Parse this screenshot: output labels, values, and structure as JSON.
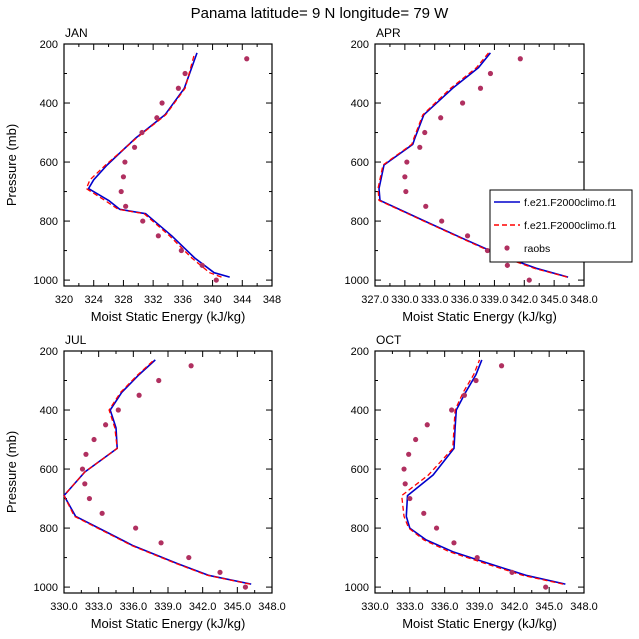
{
  "title": "Panama  latitude= 9 N longitude= 79 W",
  "legend": {
    "placement": "right, between top and bottom rows",
    "entries": [
      {
        "label": "f.e21.F2000climo.f1",
        "style": "solid",
        "color": "#0000cc"
      },
      {
        "label": "f.e21.F2000climo.f1",
        "style": "dashed",
        "color": "#ff0000"
      },
      {
        "label": "raobs",
        "style": "marker",
        "color": "#b03060"
      }
    ]
  },
  "chart_data": [
    {
      "type": "line",
      "panel": "JAN",
      "title": "JAN",
      "xlabel": "Moist Static Energy (kJ/kg)",
      "ylabel": "Pressure (mb)",
      "xlim": [
        320,
        348
      ],
      "ylim": [
        1020,
        200
      ],
      "xticks": [
        "320",
        "324",
        "328",
        "332",
        "336",
        "340",
        "344",
        "348"
      ],
      "yticks": [
        "200",
        "400",
        "600",
        "800",
        "1000"
      ],
      "series": [
        {
          "name": "f.e21.F2000climo.f1",
          "style": "solid",
          "color": "#0000cc",
          "x": [
            342.3,
            340.2,
            337.6,
            334.5,
            331.0,
            327.5,
            326.0,
            323.3,
            324.0,
            325.8,
            329.6,
            333.6,
            336.2,
            337.9
          ],
          "y": [
            990,
            975,
            925,
            850,
            775,
            760,
            730,
            690,
            660,
            610,
            520,
            440,
            350,
            230
          ]
        },
        {
          "name": "f.e21.F2000climo.f1",
          "style": "dashed",
          "color": "#ff0000",
          "x": [
            341.2,
            339.6,
            337.2,
            334.2,
            330.8,
            327.3,
            325.5,
            323.0,
            323.5,
            325.6,
            329.7,
            333.7,
            336.3,
            337.6
          ],
          "y": [
            990,
            975,
            925,
            850,
            775,
            760,
            730,
            690,
            660,
            610,
            520,
            440,
            350,
            230
          ]
        },
        {
          "name": "raobs",
          "style": "marker",
          "color": "#b03060",
          "x": [
            340.5,
            338.6,
            335.8,
            332.7,
            330.6,
            328.3,
            327.7,
            328.0,
            328.2,
            329.5,
            330.5,
            332.5,
            333.2,
            335.4,
            336.3,
            344.6
          ],
          "y": [
            1000,
            950,
            900,
            850,
            800,
            750,
            700,
            650,
            600,
            550,
            500,
            450,
            400,
            350,
            300,
            250
          ]
        }
      ]
    },
    {
      "type": "line",
      "panel": "APR",
      "title": "APR",
      "xlabel": "Moist Static Energy (kJ/kg)",
      "ylabel": "",
      "xlim": [
        327,
        348
      ],
      "ylim": [
        1020,
        200
      ],
      "xticks": [
        "327.0",
        "330.0",
        "333.0",
        "336.0",
        "339.0",
        "342.0",
        "345.0",
        "348.0"
      ],
      "yticks": [
        "200",
        "400",
        "600",
        "800",
        "1000"
      ],
      "series": [
        {
          "name": "f.e21.F2000climo.f1",
          "style": "solid",
          "color": "#0000cc",
          "x": [
            346.4,
            343.2,
            339.9,
            335.9,
            332.0,
            327.5,
            327.4,
            327.9,
            330.8,
            331.0,
            331.9,
            334.8,
            337.4,
            338.6
          ],
          "y": [
            990,
            960,
            920,
            860,
            800,
            730,
            690,
            610,
            540,
            520,
            440,
            350,
            280,
            230
          ]
        },
        {
          "name": "f.e21.F2000climo.f1",
          "style": "dashed",
          "color": "#ff0000",
          "x": [
            346.3,
            343.0,
            339.7,
            335.8,
            331.9,
            327.4,
            327.3,
            327.8,
            330.7,
            330.9,
            331.8,
            334.6,
            337.2,
            338.4
          ],
          "y": [
            990,
            960,
            920,
            860,
            800,
            730,
            690,
            610,
            540,
            520,
            440,
            350,
            280,
            230
          ]
        },
        {
          "name": "raobs",
          "style": "marker",
          "color": "#b03060",
          "x": [
            342.5,
            340.3,
            338.3,
            336.3,
            333.7,
            332.1,
            330.1,
            330.0,
            330.2,
            331.5,
            332.0,
            333.6,
            335.8,
            337.6,
            338.6,
            341.6
          ],
          "y": [
            1000,
            950,
            900,
            850,
            800,
            750,
            700,
            650,
            600,
            550,
            500,
            450,
            400,
            350,
            300,
            250
          ]
        }
      ]
    },
    {
      "type": "line",
      "panel": "JUL",
      "title": "JUL",
      "xlabel": "Moist Static Energy (kJ/kg)",
      "ylabel": "Pressure (mb)",
      "xlim": [
        330,
        348
      ],
      "ylim": [
        1020,
        200
      ],
      "xticks": [
        "330.0",
        "333.0",
        "336.0",
        "339.0",
        "342.0",
        "345.0",
        "348.0"
      ],
      "yticks": [
        "200",
        "400",
        "600",
        "800",
        "1000"
      ],
      "series": [
        {
          "name": "f.e21.F2000climo.f1",
          "style": "solid",
          "color": "#0000cc",
          "x": [
            346.2,
            342.5,
            339.8,
            336.0,
            333.5,
            331.0,
            330.0,
            331.8,
            334.6,
            334.5,
            334.0,
            335.0,
            336.5,
            337.9
          ],
          "y": [
            990,
            960,
            920,
            860,
            810,
            760,
            690,
            610,
            530,
            460,
            400,
            340,
            280,
            230
          ]
        },
        {
          "name": "f.e21.F2000climo.f1",
          "style": "dashed",
          "color": "#ff0000",
          "x": [
            346.1,
            342.4,
            339.7,
            335.9,
            333.4,
            330.9,
            330.0,
            331.8,
            334.6,
            334.4,
            333.9,
            334.9,
            336.4,
            337.8
          ],
          "y": [
            990,
            960,
            920,
            860,
            810,
            760,
            690,
            610,
            530,
            460,
            400,
            340,
            280,
            230
          ]
        },
        {
          "name": "raobs",
          "style": "marker",
          "color": "#b03060",
          "x": [
            345.7,
            343.5,
            340.8,
            338.4,
            336.2,
            333.3,
            332.2,
            331.8,
            331.6,
            331.9,
            332.6,
            333.6,
            334.7,
            336.5,
            338.2,
            341.0
          ],
          "y": [
            1000,
            950,
            900,
            850,
            800,
            750,
            700,
            650,
            600,
            550,
            500,
            450,
            400,
            350,
            300,
            250
          ]
        }
      ]
    },
    {
      "type": "line",
      "panel": "OCT",
      "title": "OCT",
      "xlabel": "Moist Static Energy (kJ/kg)",
      "ylabel": "",
      "xlim": [
        330,
        348
      ],
      "ylim": [
        1020,
        200
      ],
      "xticks": [
        "330.0",
        "333.0",
        "336.0",
        "339.0",
        "342.0",
        "345.0",
        "348.0"
      ],
      "yticks": [
        "200",
        "400",
        "600",
        "800",
        "1000"
      ],
      "series": [
        {
          "name": "f.e21.F2000climo.f1",
          "style": "solid",
          "color": "#0000cc",
          "x": [
            346.4,
            343.0,
            339.8,
            336.7,
            334.4,
            333.0,
            332.7,
            332.8,
            335.0,
            336.8,
            336.9,
            337.0,
            337.8,
            338.7,
            339.2
          ],
          "y": [
            990,
            960,
            920,
            880,
            840,
            800,
            760,
            690,
            620,
            530,
            460,
            400,
            340,
            280,
            230
          ]
        },
        {
          "name": "f.e21.F2000climo.f1",
          "style": "dashed",
          "color": "#ff0000",
          "x": [
            346.2,
            342.7,
            339.5,
            336.4,
            334.2,
            332.9,
            332.5,
            332.3,
            334.6,
            336.7,
            336.8,
            336.9,
            337.6,
            338.5,
            339.0
          ],
          "y": [
            990,
            960,
            920,
            880,
            840,
            800,
            760,
            690,
            620,
            530,
            460,
            400,
            340,
            280,
            230
          ]
        },
        {
          "name": "raobs",
          "style": "marker",
          "color": "#b03060",
          "x": [
            344.7,
            341.8,
            338.8,
            336.8,
            335.3,
            334.2,
            333.0,
            332.6,
            332.5,
            332.9,
            333.5,
            334.5,
            336.6,
            337.7,
            338.7,
            340.9
          ],
          "y": [
            1000,
            950,
            900,
            850,
            800,
            750,
            700,
            650,
            600,
            550,
            500,
            450,
            400,
            350,
            300,
            250
          ]
        }
      ]
    }
  ]
}
